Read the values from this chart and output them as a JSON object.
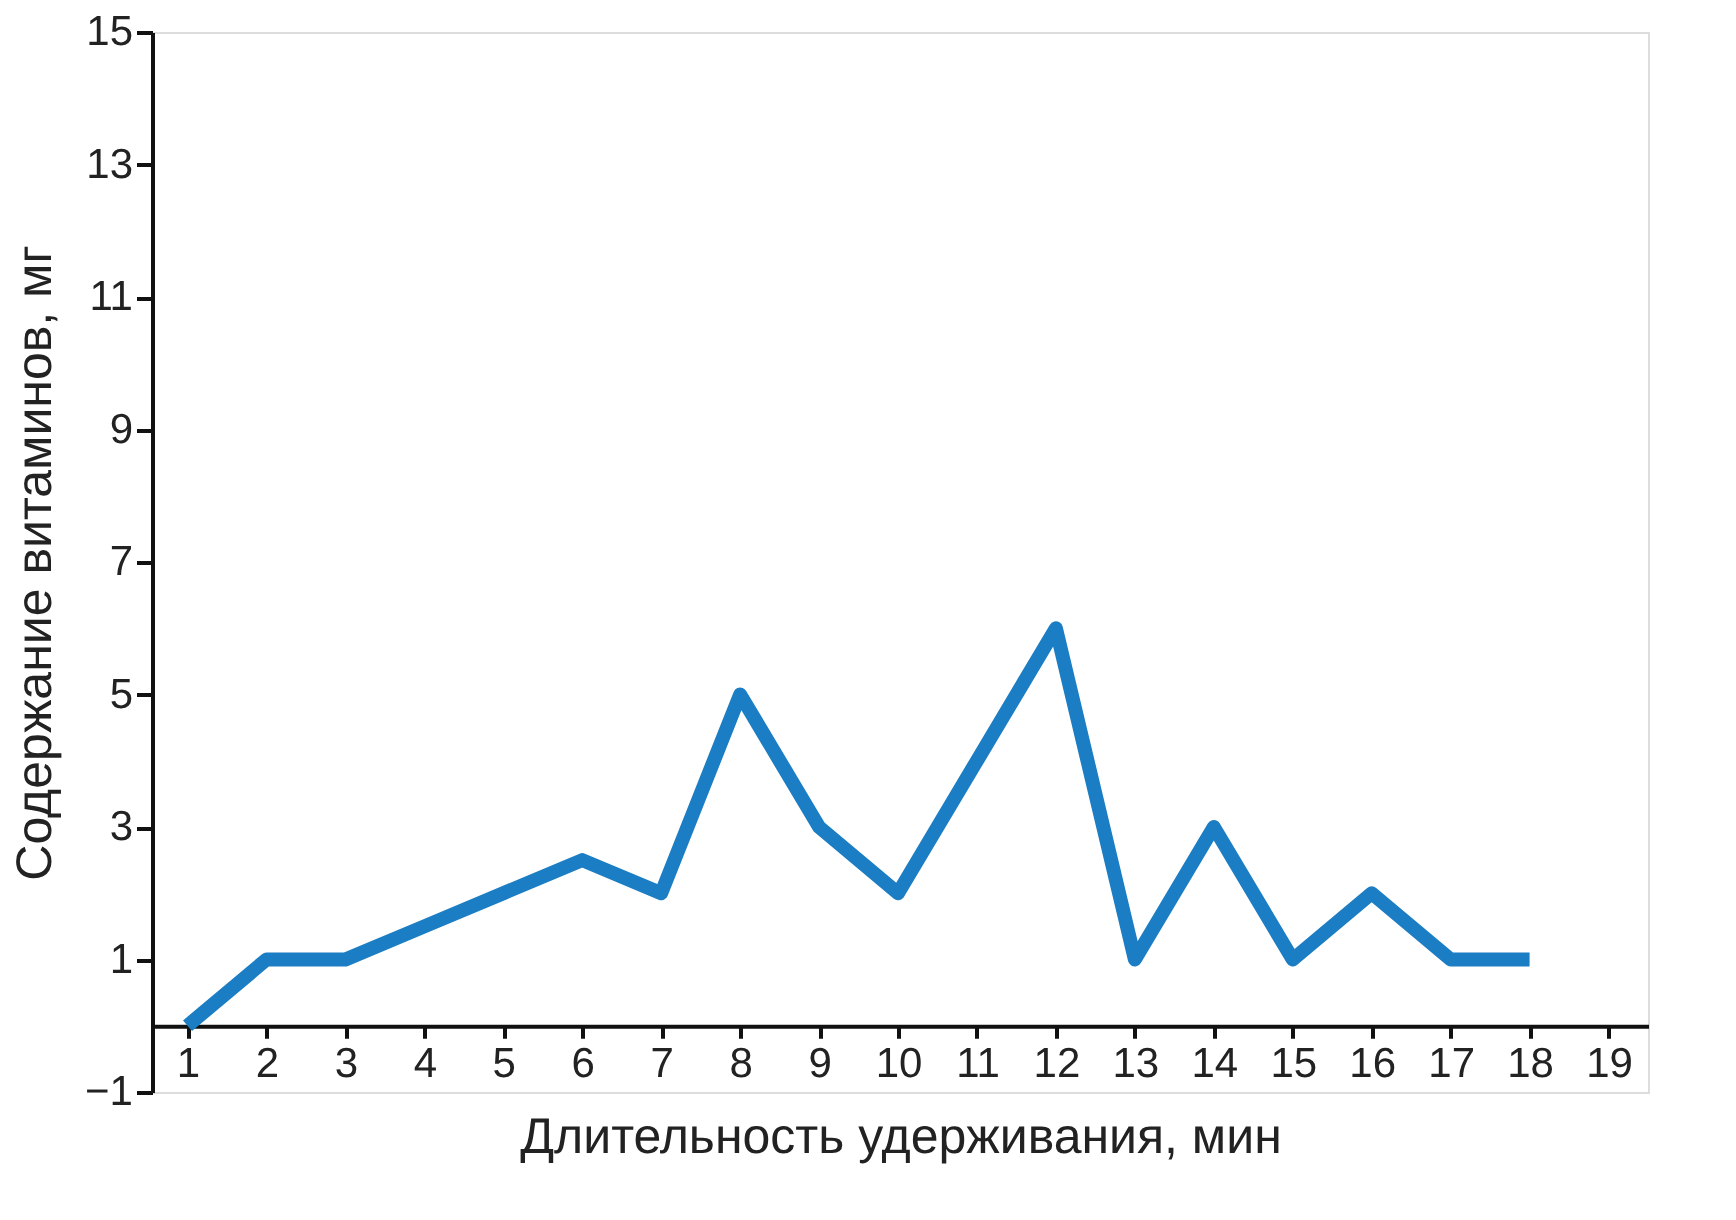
{
  "chart_data": {
    "type": "line",
    "xlabel": "Длительность удерживания, мин",
    "ylabel": "Содержание витаминов, мг",
    "x": [
      1,
      2,
      3,
      4,
      5,
      6,
      7,
      8,
      9,
      10,
      11,
      12,
      13,
      14,
      15,
      16,
      17,
      18
    ],
    "series": [
      {
        "color": "#1b7dc3",
        "values": [
          0,
          1,
          1,
          1.5,
          2,
          2.5,
          2,
          5,
          3,
          2,
          4,
          6,
          1,
          3,
          1,
          2,
          1,
          1
        ]
      }
    ],
    "xlim": [
      0.55,
      19.5
    ],
    "xticks": [
      1,
      2,
      3,
      4,
      5,
      6,
      7,
      8,
      9,
      10,
      11,
      12,
      13,
      14,
      15,
      16,
      17,
      18,
      19
    ],
    "ylim": [
      -1,
      15
    ],
    "yticks": [
      -1,
      1,
      3,
      5,
      7,
      9,
      11,
      13,
      15
    ],
    "grid": false,
    "legend": false,
    "marker": "none",
    "line_style": "solid"
  }
}
